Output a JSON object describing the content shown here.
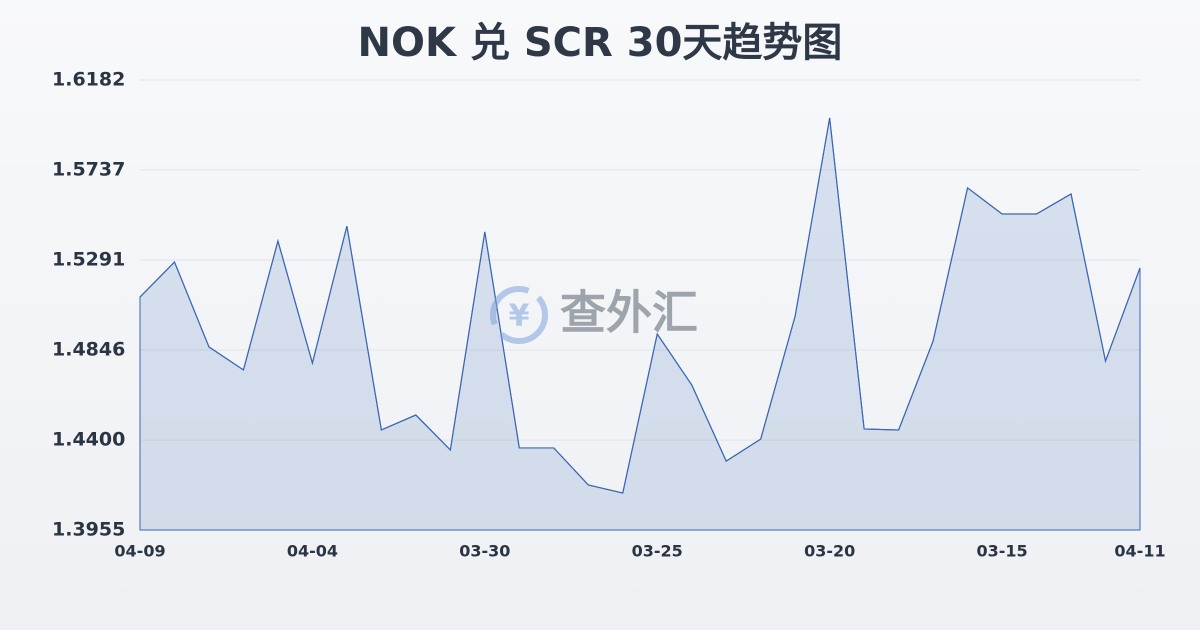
{
  "chart_data": {
    "type": "line",
    "title": "NOK 兑 SCR 30天趋势图",
    "watermark": "查外汇",
    "categories": [
      "04-09",
      null,
      null,
      null,
      null,
      "04-04",
      null,
      null,
      null,
      null,
      "03-30",
      null,
      null,
      null,
      null,
      "03-25",
      null,
      null,
      null,
      null,
      "03-20",
      null,
      null,
      null,
      null,
      "03-15",
      null,
      null,
      null,
      "04-11"
    ],
    "values": [
      1.5108,
      1.5281,
      1.4861,
      1.4747,
      1.5385,
      1.4781,
      1.5459,
      1.445,
      1.4524,
      1.4351,
      1.543,
      1.4361,
      1.4361,
      1.4178,
      1.4138,
      1.4925,
      1.4673,
      1.4296,
      1.4405,
      1.5014,
      1.5994,
      1.4455,
      1.445,
      1.489,
      1.5648,
      1.5519,
      1.5519,
      1.5618,
      1.4791,
      1.5252
    ],
    "color": "#3a67b5",
    "ylim": [
      1.3955,
      1.6182
    ],
    "yticks": [
      1.3955,
      {
        "value": 1.44,
        "label": "1.4400"
      },
      1.4846,
      1.5291,
      1.5737,
      1.6182
    ],
    "grid": true
  }
}
